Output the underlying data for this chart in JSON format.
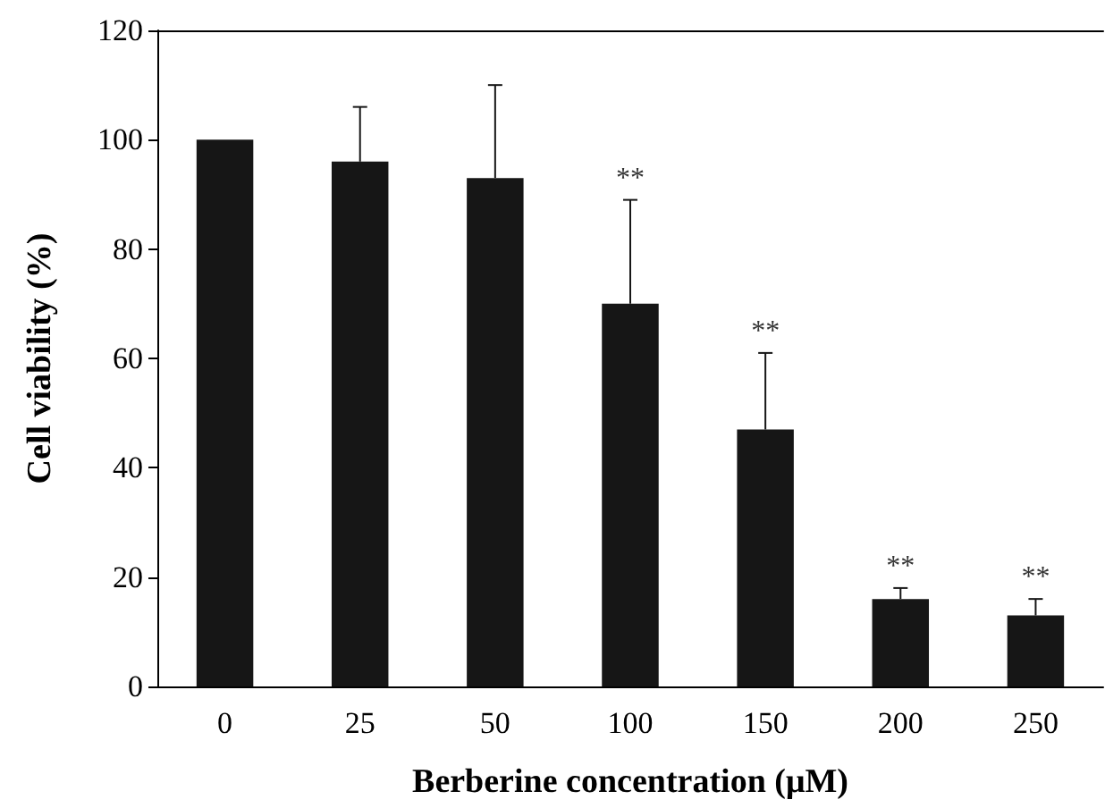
{
  "chart_data": {
    "type": "bar",
    "xlabel": "Berberine concentration (μM)",
    "ylabel": "Cell viability (%)",
    "categories": [
      "0",
      "25",
      "50",
      "100",
      "150",
      "200",
      "250"
    ],
    "values": [
      100,
      96,
      93,
      70,
      47,
      16,
      13
    ],
    "errors": [
      null,
      10,
      17,
      19,
      14,
      2,
      3
    ],
    "color": "#161616",
    "ylim": [
      0,
      120
    ],
    "yticks": [
      0,
      20,
      40,
      60,
      80,
      100,
      120
    ],
    "grid": false,
    "annotations": [
      {
        "text": "**",
        "x": "100",
        "y": 89
      },
      {
        "text": "**",
        "x": "150",
        "y": 61
      },
      {
        "text": "**",
        "x": "200",
        "y": 18
      },
      {
        "text": "**",
        "x": "250",
        "y": 16
      }
    ]
  }
}
